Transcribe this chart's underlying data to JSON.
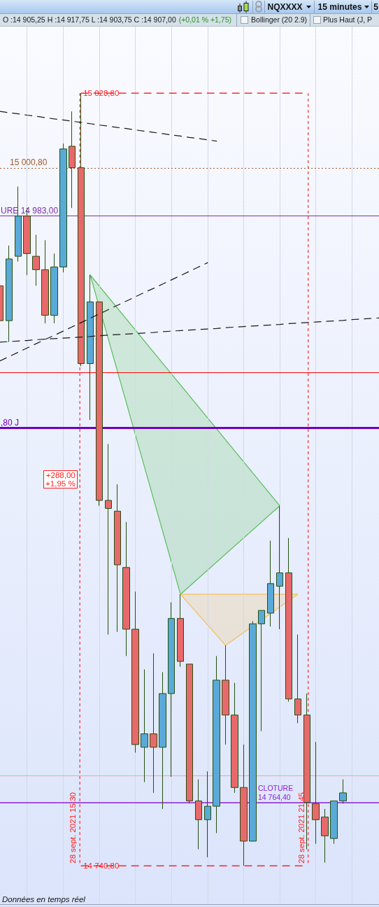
{
  "chart_data": {
    "type": "candlestick",
    "title": "NQXXXX",
    "subtitle": "O :14 905,25 H :14 917,75 L :14 903,75 C :14 907,00",
    "categories": [
      null,
      null,
      null,
      null,
      null,
      null,
      null,
      null,
      null,
      null,
      null,
      null,
      null,
      null,
      null,
      null,
      null,
      null,
      null,
      null,
      null,
      null,
      null,
      null,
      null,
      null,
      null,
      null,
      null,
      null,
      null,
      null,
      null,
      null,
      null,
      null,
      null,
      null,
      null,
      null,
      null,
      null,
      null
    ],
    "ohlc": [
      [
        14957,
        14957,
        14944,
        14944
      ],
      [
        14944,
        14972,
        14936,
        14967
      ],
      [
        14968,
        14994,
        14966,
        14983
      ],
      [
        14983,
        14986,
        14961,
        14969
      ],
      [
        14968,
        14976,
        14957,
        14963
      ],
      [
        14963,
        14974,
        14943,
        14946
      ],
      [
        14946,
        14969,
        14943,
        14964
      ],
      [
        14964,
        15010,
        14962,
        15008
      ],
      [
        15009,
        15022,
        14986,
        15001
      ],
      [
        15001,
        15028.8,
        14927,
        14928
      ],
      [
        14928,
        14961,
        14907,
        14951
      ],
      [
        14951,
        14951,
        14875,
        14877
      ],
      [
        14877,
        14898,
        14827,
        14874
      ],
      [
        14873,
        14883,
        14828,
        14853
      ],
      [
        14852,
        14869,
        14819,
        14829
      ],
      [
        14829,
        14843,
        14783,
        14786
      ],
      [
        14785,
        14814,
        14772,
        14790
      ],
      [
        14790,
        14820,
        14768,
        14785
      ],
      [
        14785,
        14813,
        14762,
        14805
      ],
      [
        14805,
        14839,
        14774,
        14833
      ],
      [
        14833,
        14842,
        14815,
        14817
      ],
      [
        14816,
        14816,
        14764,
        14765
      ],
      [
        14765,
        14773,
        14747,
        14758
      ],
      [
        14758,
        14776,
        14744,
        14763
      ],
      [
        14763,
        14819,
        14753,
        14810
      ],
      [
        14810,
        14823,
        14786,
        14797
      ],
      [
        14797,
        14809,
        14768,
        14770
      ],
      [
        14770,
        14786,
        14740.8,
        14750
      ],
      [
        14750,
        14832,
        14750,
        14831
      ],
      [
        14831,
        14836,
        14791,
        14836
      ],
      [
        14835,
        14862,
        14830,
        14846
      ],
      [
        14845,
        14875,
        14829,
        14850
      ],
      [
        14850,
        14863,
        14802,
        14803
      ],
      [
        14803,
        14827,
        14794,
        14797
      ],
      [
        14797,
        14805,
        14747,
        14764.4
      ],
      [
        14764,
        14787,
        14749,
        14758
      ],
      [
        14759,
        14762,
        14742,
        14752
      ],
      [
        14751,
        14765,
        14749,
        14765
      ],
      [
        14765,
        14773,
        14764,
        14768
      ],
      null,
      null,
      null,
      null
    ],
    "colors": [
      "#e8696b",
      "#5aaad8",
      "#5aaad8",
      "#e8696b",
      "#e8696b",
      "#e8696b",
      "#5aaad8",
      "#5aaad8",
      "#e8696b",
      "#e8696b",
      "#5aaad8",
      "#e8696b",
      "#e8696b",
      "#e8696b",
      "#e8696b",
      "#e8696b",
      "#5aaad8",
      "#e8696b",
      "#5aaad8",
      "#5aaad8",
      "#e8696b",
      "#e8696b",
      "#e8696b",
      "#5aaad8",
      "#5aaad8",
      "#e8696b",
      "#e8696b",
      "#e8696b",
      "#5aaad8",
      "#5aaad8",
      "#5aaad8",
      "#5aaad8",
      "#e8696b",
      "#e8696b",
      "#e8696b",
      "#e8696b",
      "#e8696b",
      "#5aaad8",
      "#5aaad8",
      null,
      null,
      null,
      null
    ],
    "series": [
      {
        "type": "line",
        "color": "#1a1a1a",
        "line_style": "dashed",
        "values": [
          15022.0,
          15021.5,
          15021.1,
          15020.6,
          15020.2,
          15019.7,
          15019.2,
          15018.8,
          15018.3,
          15017.9,
          15017.4,
          15016.9,
          15016.5,
          15016.0,
          15015.6,
          15015.1,
          15014.6,
          15014.2,
          15013.7,
          15013.2,
          15012.8,
          15012.3,
          15011.9,
          15011.4,
          15010.9,
          null,
          null,
          null,
          null,
          null,
          null,
          null,
          null,
          null,
          null,
          null,
          null,
          null,
          null,
          null,
          null,
          null,
          null
        ]
      },
      {
        "type": "line",
        "color": "#1a1a1a",
        "line_style": "dashed",
        "values": [
          14929.0,
          14930.6,
          14932.2,
          14933.8,
          14935.4,
          14937.0,
          14938.5,
          14940.1,
          14941.7,
          14943.3,
          14944.9,
          14946.5,
          14948.1,
          14949.7,
          14951.3,
          14952.9,
          14954.5,
          14956.0,
          14957.6,
          14959.2,
          14960.8,
          14962.4,
          14964.0,
          14965.6,
          null,
          null,
          null,
          null,
          null,
          null,
          null,
          null,
          null,
          null,
          null,
          null,
          null,
          null,
          null,
          null,
          null,
          null,
          null
        ]
      },
      {
        "type": "line",
        "color": "#1a1a1a",
        "line_style": "dashed",
        "values": [
          14936.0,
          14936.2,
          14936.4,
          14936.6,
          14936.9,
          14937.1,
          14937.3,
          14937.5,
          14937.7,
          14937.9,
          14938.1,
          14938.4,
          14938.6,
          14938.8,
          14939.0,
          14939.2,
          14939.4,
          14939.6,
          14939.9,
          14940.1,
          14940.3,
          14940.5,
          14940.7,
          14940.9,
          14941.1,
          14941.4,
          14941.6,
          14941.8,
          14942.0,
          14942.2,
          14942.4,
          14942.6,
          14942.9,
          14943.1,
          14943.3,
          14943.5,
          14943.7,
          14943.9,
          14944.1,
          14944.4,
          14944.6,
          14944.8,
          14945.0
        ]
      },
      {
        "type": "line",
        "color": "#ff0000",
        "line_style": "dashed",
        "values": [
          null,
          null,
          null,
          null,
          null,
          null,
          null,
          null,
          null,
          15028.8,
          15028.8,
          15028.8,
          15028.8,
          15028.8,
          15028.8,
          15028.8,
          15028.8,
          15028.8,
          15028.8,
          15028.8,
          15028.8,
          15028.8,
          15028.8,
          15028.8,
          15028.8,
          15028.8,
          15028.8,
          15028.8,
          15028.8,
          15028.8,
          15028.8,
          15028.8,
          15028.8,
          15028.8,
          15028.8,
          null,
          null,
          null,
          null,
          null,
          null,
          null,
          null
        ]
      },
      {
        "type": "line",
        "color": "#ff0000",
        "line_style": "dashed",
        "values": [
          null,
          null,
          null,
          null,
          null,
          null,
          null,
          null,
          null,
          14740.8,
          14740.8,
          14740.8,
          14740.8,
          14740.8,
          14740.8,
          14740.8,
          14740.8,
          14740.8,
          14740.8,
          14740.8,
          14740.8,
          14740.8,
          14740.8,
          14740.8,
          14740.8,
          14740.8,
          14740.8,
          14740.8,
          14740.8,
          14740.8,
          14740.8,
          14740.8,
          14740.8,
          14740.8,
          14740.8,
          null,
          null,
          null,
          null,
          null,
          null,
          null,
          null
        ]
      }
    ],
    "ref_lines": [
      {
        "axis": "y",
        "value": 15000.8,
        "label": "15 000,80",
        "color": "#a0582a",
        "line_style": "dotted"
      },
      {
        "axis": "y",
        "value": 14983,
        "label": "URE 14 983,00",
        "color": "#7b2fa8"
      },
      {
        "axis": "y",
        "value": 14924.7,
        "color": "#ff0000"
      },
      {
        "axis": "y",
        "value": 14904,
        "label": ",80 J",
        "color": "#7000c0"
      },
      {
        "axis": "y",
        "value": 14774.5,
        "color": "#f2a3a3"
      },
      {
        "axis": "y",
        "value": 14764.4,
        "label": "CLOTURE 14 764,40",
        "color": "#8a1fd0"
      }
    ],
    "annotations": [
      "(+0,01 % +1,75)",
      "15 minutes",
      "5",
      "Bollinger (20 2.9)",
      "Plus Haut (J, P",
      "Données en temps réel",
      "+288,00\n+1,95 %",
      "28 sept. 2021 15:30",
      "28 sept. 2021 21:45"
    ],
    "ylim": [
      14726.5,
      15053.6
    ],
    "yticks": [
      {
        "value": 14740.8,
        "label": "14 740,80"
      },
      {
        "value": 15028.8,
        "label": "15 028,80"
      }
    ],
    "grid": "x",
    "tick_labels": "y"
  }
}
